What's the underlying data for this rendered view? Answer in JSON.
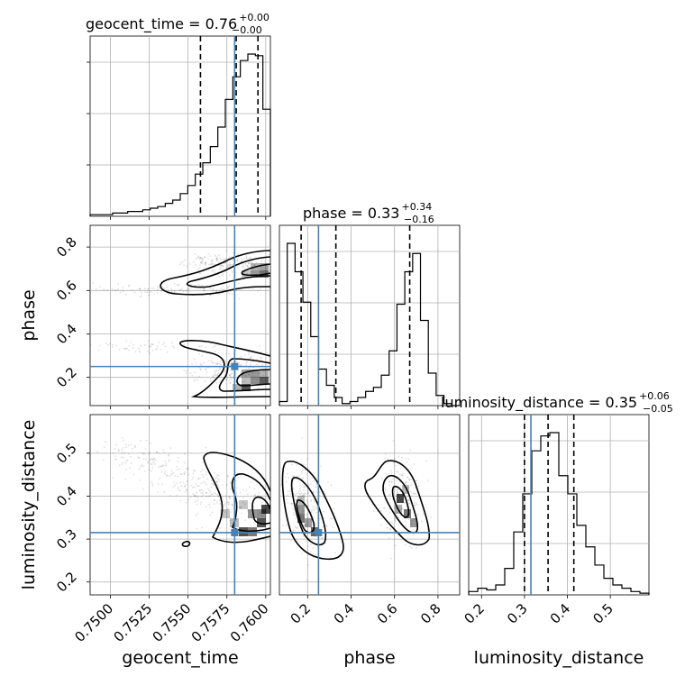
{
  "chart_data": {
    "type": "corner",
    "parameters": [
      "geocent_time",
      "phase",
      "luminosity_distance"
    ],
    "truths": {
      "geocent_time": 0.758,
      "phase": 0.25,
      "luminosity_distance": 0.315
    },
    "colors": {
      "truth": "#4682b4",
      "hist": "#000000",
      "grid": "#b0b0b0",
      "density": "#000000"
    },
    "titles": {
      "geocent_time": {
        "prefix": "geocent_time = 0.76",
        "plus": "+0.00",
        "minus": "−0.00"
      },
      "phase": {
        "prefix": "phase = 0.33",
        "plus": "+0.34",
        "minus": "−0.16"
      },
      "luminosity_distance": {
        "prefix": "luminosity_distance = 0.35",
        "plus": "+0.06",
        "minus": "−0.05"
      }
    },
    "axis_labels": {
      "geocent_time": "geocent_time",
      "phase": "phase",
      "luminosity_distance": "luminosity_distance"
    },
    "ranges": {
      "geocent_time": [
        0.7487,
        0.7603
      ],
      "phase": [
        0.07,
        0.9
      ],
      "luminosity_distance": [
        0.17,
        0.59
      ]
    },
    "ticks": {
      "geocent_time": {
        "values": [
          0.75,
          0.7525,
          0.755,
          0.7575,
          0.76
        ],
        "labels": [
          "0.7500",
          "0.7525",
          "0.7550",
          "0.7575",
          "0.7600"
        ]
      },
      "phase": {
        "values": [
          0.2,
          0.4,
          0.6,
          0.8
        ],
        "labels": [
          "0.2",
          "0.4",
          "0.6",
          "0.8"
        ]
      },
      "luminosity_distance": {
        "values": [
          0.2,
          0.3,
          0.4,
          0.5
        ],
        "labels": [
          "0.2",
          "0.3",
          "0.4",
          "0.5"
        ]
      }
    },
    "quantiles": {
      "geocent_time": [
        0.7558,
        0.7581,
        0.7595
      ],
      "phase": [
        0.17,
        0.33,
        0.67
      ],
      "luminosity_distance": [
        0.3,
        0.355,
        0.415
      ]
    },
    "histograms": {
      "geocent_time": [
        1,
        1,
        1,
        2,
        2,
        3,
        3,
        4,
        5,
        6,
        8,
        10,
        14,
        19,
        26,
        33,
        43,
        55,
        72,
        86,
        96,
        100,
        99,
        66
      ],
      "phase": [
        2,
        80,
        66,
        51,
        34,
        18,
        10,
        4,
        1,
        2,
        4,
        7,
        9,
        15,
        27,
        50,
        66,
        75,
        42,
        16,
        5,
        1,
        0
      ],
      "luminosity_distance": [
        2,
        4,
        3,
        6,
        16,
        38,
        61,
        87,
        96,
        98,
        72,
        61,
        42,
        29,
        18,
        10,
        6,
        4,
        2,
        1
      ]
    }
  }
}
